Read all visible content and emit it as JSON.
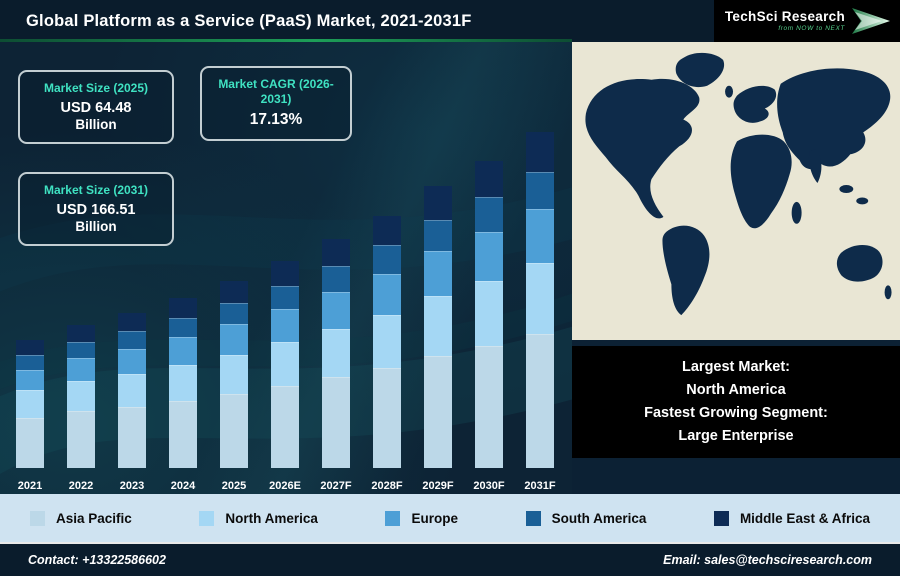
{
  "header": {
    "title": "Global Platform as a Service (PaaS) Market, 2021-2031F",
    "logo": {
      "name": "TechSci Research",
      "tagline": "from NOW to NEXT"
    }
  },
  "info_boxes": [
    {
      "title": "Market Size (2025)",
      "value": "USD 64.48",
      "unit": "Billion"
    },
    {
      "title": "Market CAGR (2026-2031)",
      "value": "17.13%"
    },
    {
      "title": "Market Size (2031)",
      "value": "USD 166.51",
      "unit": "Billion"
    }
  ],
  "highlight_box": {
    "lines": [
      "Largest Market:",
      "North America",
      "Fastest Growing Segment:",
      "Large Enterprise"
    ]
  },
  "chart_data": {
    "type": "bar",
    "stacked": true,
    "title": "Global Platform as a Service (PaaS) Market, 2021-2031F",
    "categories": [
      "2021",
      "2022",
      "2023",
      "2024",
      "2025",
      "2026E",
      "2027F",
      "2028F",
      "2029F",
      "2030F",
      "2031F"
    ],
    "series": [
      {
        "name": "Asia Pacific",
        "color": "#bcd8e8",
        "values": [
          15.2,
          17.0,
          18.4,
          20.2,
          22.2,
          24.6,
          27.2,
          30.0,
          33.6,
          36.6,
          40.0
        ]
      },
      {
        "name": "North America",
        "color": "#a4d7f4",
        "values": [
          8.0,
          8.9,
          9.7,
          10.6,
          11.7,
          12.9,
          14.3,
          15.8,
          17.6,
          19.2,
          21.0
        ]
      },
      {
        "name": "Europe",
        "color": "#4d9fd6",
        "values": [
          6.1,
          6.8,
          7.4,
          8.1,
          8.9,
          9.8,
          10.9,
          12.0,
          13.4,
          14.6,
          16.0
        ]
      },
      {
        "name": "South America",
        "color": "#1a5f96",
        "values": [
          4.2,
          4.7,
          5.1,
          5.6,
          6.1,
          6.8,
          7.5,
          8.3,
          9.2,
          10.1,
          11.0
        ]
      },
      {
        "name": "Middle East & Africa",
        "color": "#0d2b55",
        "values": [
          4.6,
          5.1,
          5.5,
          6.1,
          6.7,
          7.4,
          8.2,
          9.0,
          10.1,
          11.0,
          12.0
        ]
      }
    ],
    "value_units": "relative stacked height estimated from pixels (2031F total = 100); no numeric axis shown",
    "legend_position": "bottom",
    "grid": false
  },
  "map": {
    "land_color": "#0e2b4a",
    "sea_color": "#e9e6d4"
  },
  "footer": {
    "contact": "Contact: +13322586602",
    "email": "Email: sales@techsciresearch.com"
  }
}
